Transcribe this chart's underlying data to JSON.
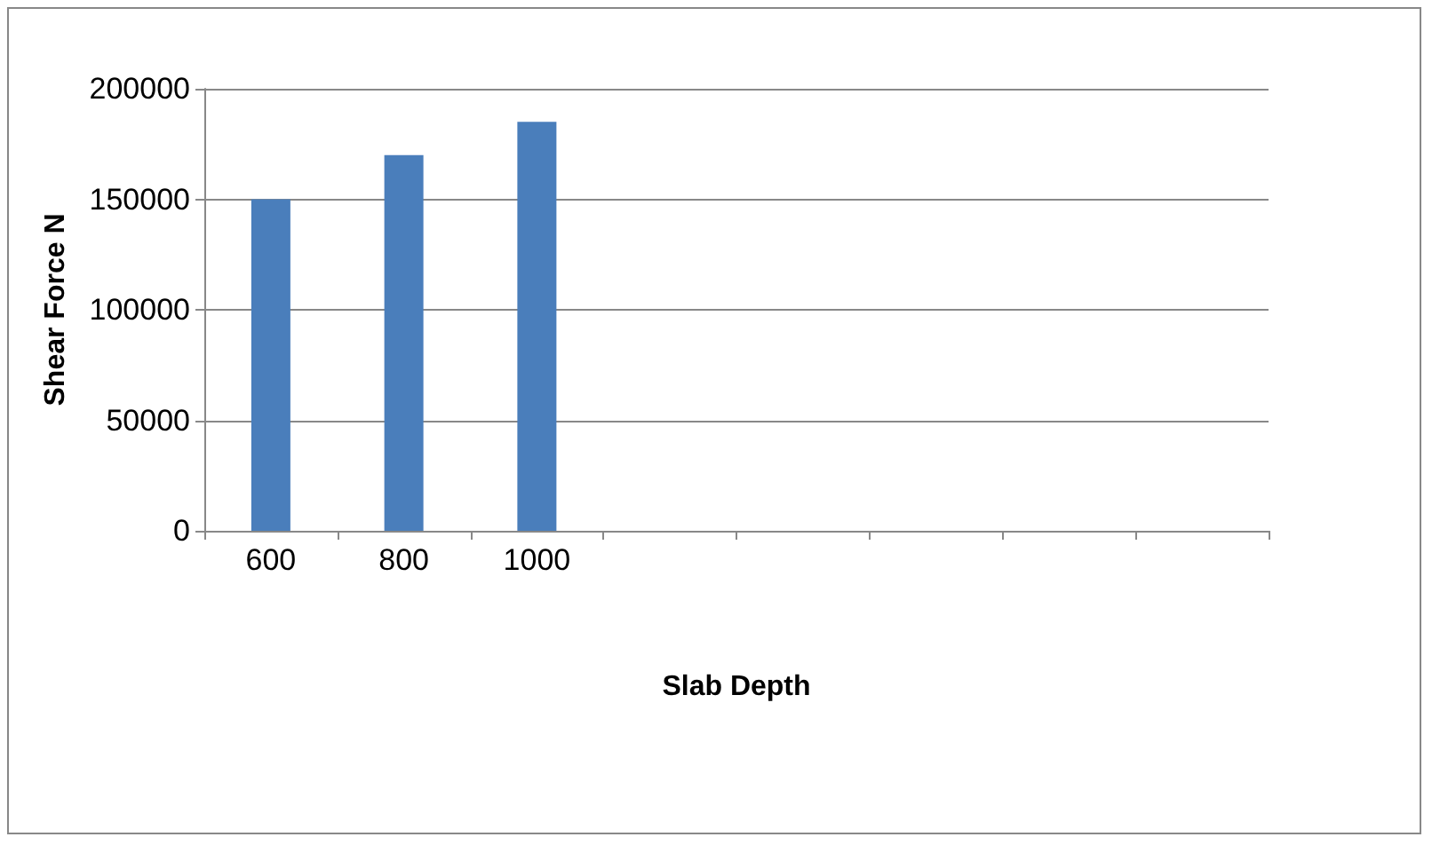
{
  "chart_data": {
    "type": "bar",
    "xlabel": "Slab Depth",
    "ylabel": "Shear Force N",
    "categories": [
      "600",
      "800",
      "1000",
      null,
      null,
      null,
      null,
      null
    ],
    "values": [
      150000,
      170000,
      185000,
      null,
      null,
      null,
      null,
      null
    ],
    "color": "#4a7ebb",
    "ylim": [
      0,
      200000
    ],
    "yticks": [
      0,
      50000,
      100000,
      150000,
      200000
    ],
    "grid": "y"
  }
}
